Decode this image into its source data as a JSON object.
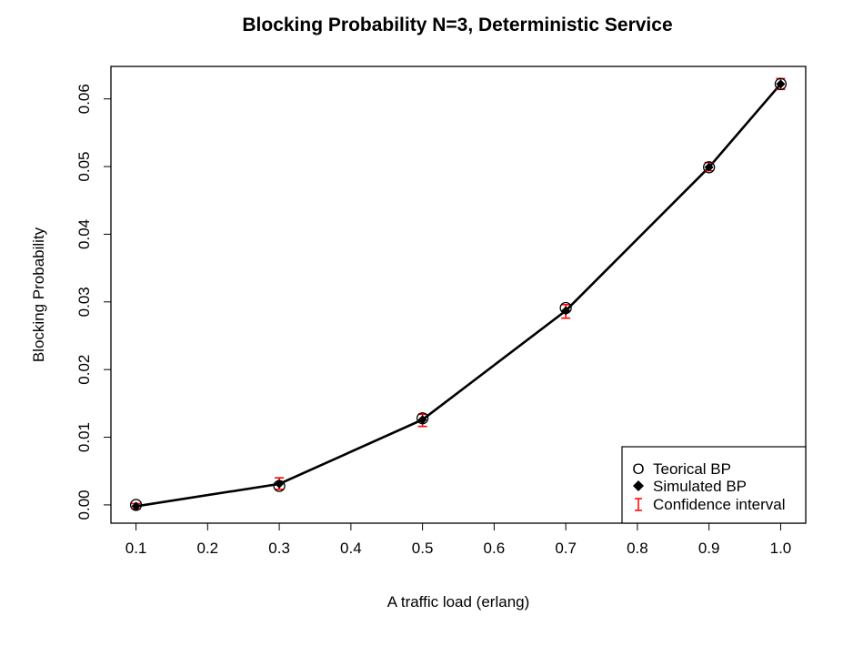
{
  "chart_data": {
    "type": "line",
    "title": "Blocking Probability N=3, Deterministic Service",
    "xlabel": "A traffic load (erlang)",
    "ylabel": "Blocking Probability",
    "xlim": [
      0.065,
      1.035
    ],
    "ylim": [
      -0.0027,
      0.0648
    ],
    "x_ticks": [
      "0.1",
      "0.2",
      "0.3",
      "0.4",
      "0.5",
      "0.6",
      "0.7",
      "0.8",
      "0.9",
      "1.0"
    ],
    "y_ticks": [
      "0.00",
      "0.01",
      "0.02",
      "0.03",
      "0.04",
      "0.05",
      "0.06"
    ],
    "x": [
      0.1,
      0.3,
      0.5,
      0.7,
      0.9,
      1.0
    ],
    "series": [
      {
        "name": "Teorical BP",
        "marker": "open-circle",
        "values": [
          0.0,
          0.0028,
          0.0128,
          0.0291,
          0.0499,
          0.0622
        ]
      },
      {
        "name": "Simulated BP",
        "marker": "filled-diamond",
        "line": true,
        "values": [
          -0.0002,
          0.0031,
          0.0126,
          0.0287,
          0.0499,
          0.0622
        ]
      },
      {
        "name": "Confidence interval",
        "marker": "errorbar",
        "lower": [
          -0.0006,
          0.0023,
          0.0116,
          0.0276,
          0.0494,
          0.0614
        ],
        "upper": [
          0.0002,
          0.004,
          0.0134,
          0.0296,
          0.0506,
          0.063
        ]
      }
    ],
    "legend": {
      "position": "bottom-right"
    },
    "grid": false,
    "colors": {
      "line": "#000000",
      "errorbar": "#ff0000",
      "background": "#ffffff"
    }
  }
}
